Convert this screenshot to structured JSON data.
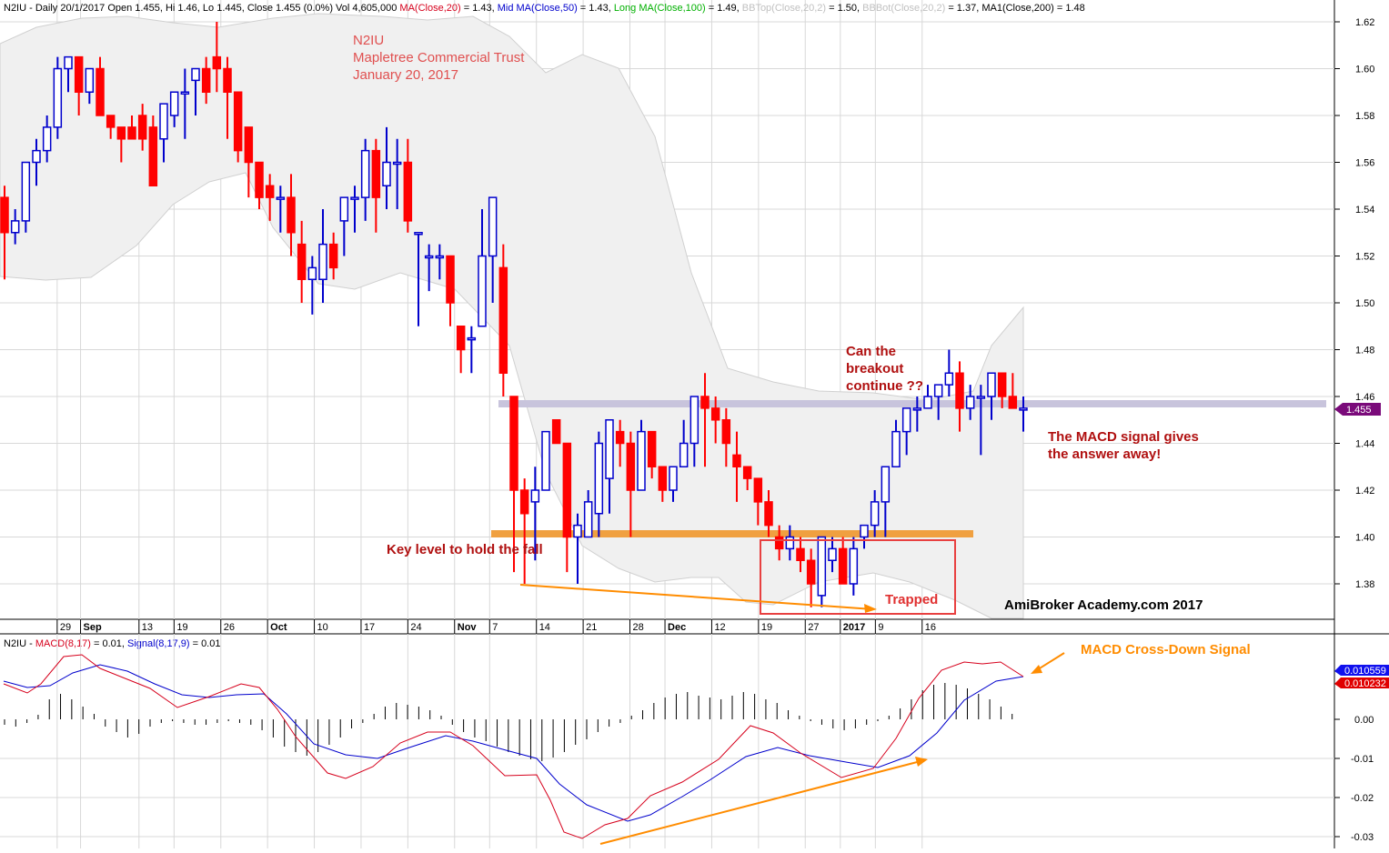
{
  "header": {
    "segments": [
      {
        "text": "N2IU - Daily 20/1/2017 Open 1.455, Hi 1.46, Lo 1.445, Close 1.455 (0.0%) Vol 4,605,000 ",
        "color": "#000000"
      },
      {
        "text": "MA(Close,20)",
        "color": "#d6001c"
      },
      {
        "text": " = 1.43, ",
        "color": "#000000"
      },
      {
        "text": "Mid MA(Close,50)",
        "color": "#0000cc"
      },
      {
        "text": " = 1.43, ",
        "color": "#000000"
      },
      {
        "text": "Long MA(Close,100)",
        "color": "#00b000"
      },
      {
        "text": " = 1.49, ",
        "color": "#000000"
      },
      {
        "text": "BBTop(Close,20,2)",
        "color": "#c0c0c0"
      },
      {
        "text": " = 1.50, ",
        "color": "#000000"
      },
      {
        "text": "BBBot(Close,20,2)",
        "color": "#c0c0c0"
      },
      {
        "text": " = 1.37, MA1(Close,200) = 1.48",
        "color": "#000000"
      }
    ]
  },
  "macd_header": {
    "segments": [
      {
        "text": "N2IU - ",
        "color": "#000000"
      },
      {
        "text": "MACD(8,17)",
        "color": "#d6001c"
      },
      {
        "text": " = 0.01, ",
        "color": "#000000"
      },
      {
        "text": "Signal(8,17,9)",
        "color": "#0000cc"
      },
      {
        "text": " = 0.01",
        "color": "#000000"
      }
    ]
  },
  "colors": {
    "up_candle": "#0000cc",
    "down_candle": "#ff0000",
    "band_fill": "#f0f0f0",
    "grid": "#d8d8d8",
    "macd_line": "#d6001c",
    "signal_line": "#0000cc",
    "resistance": "#c8c4dc",
    "support": "#f0a040",
    "annotation_red": "#c00000",
    "annotation_orange": "#ff8c00",
    "trapped_box": "#e84040",
    "price_marker": "#7a0a7a",
    "macd_marker": "#1010ee",
    "signal_marker": "#e00000"
  },
  "annotations": {
    "title_line1": "N2IU",
    "title_line2": "Mapletree Commercial Trust",
    "title_line3": "January 20, 2017",
    "can_line1": "Can the",
    "can_line2": "breakout",
    "can_line3": "continue ??",
    "macd_note_line1": "The MACD signal gives",
    "macd_note_line2": "the answer away!",
    "key_level": "Key level to hold the fall",
    "trapped": "Trapped",
    "watermark": "AmiBroker Academy.com  2017",
    "macd_cross": "MACD Cross-Down Signal"
  },
  "markers": {
    "last_price": "1.455",
    "macd_value": "0.010559",
    "signal_value": "0.010232"
  },
  "chart_data": [
    {
      "type": "candlestick",
      "title": "N2IU - Daily 20/1/2017",
      "y_axis": {
        "min": 1.365,
        "max": 1.625,
        "ticks": [
          "1.38",
          "1.40",
          "1.42",
          "1.44",
          "1.46",
          "1.48",
          "1.50",
          "1.52",
          "1.54",
          "1.56",
          "1.58",
          "1.60",
          "1.62"
        ]
      },
      "x_ticks": [
        {
          "i": 1,
          "label": "29"
        },
        {
          "i": 3,
          "label": "Sep"
        },
        {
          "i": 8,
          "label": "13"
        },
        {
          "i": 11,
          "label": "19"
        },
        {
          "i": 15,
          "label": "26"
        },
        {
          "i": 19,
          "label": "Oct"
        },
        {
          "i": 23,
          "label": "10"
        },
        {
          "i": 27,
          "label": "17"
        },
        {
          "i": 31,
          "label": "24"
        },
        {
          "i": 35,
          "label": "Nov"
        },
        {
          "i": 38,
          "label": "7"
        },
        {
          "i": 42,
          "label": "14"
        },
        {
          "i": 46,
          "label": "21"
        },
        {
          "i": 50,
          "label": "28"
        },
        {
          "i": 53,
          "label": "Dec"
        },
        {
          "i": 57,
          "label": "12"
        },
        {
          "i": 61,
          "label": "19"
        },
        {
          "i": 65,
          "label": "27"
        },
        {
          "i": 68,
          "label": "2017"
        },
        {
          "i": 71,
          "label": "9"
        },
        {
          "i": 75,
          "label": "16"
        }
      ],
      "candles": [
        [
          1.545,
          1.55,
          1.53,
          1.53
        ],
        [
          1.54,
          1.54,
          1.51,
          1.53
        ],
        [
          1.53,
          1.545,
          1.525,
          1.535
        ],
        [
          1.535,
          1.56,
          1.535,
          1.56
        ],
        [
          1.56,
          1.575,
          1.55,
          1.565
        ],
        [
          1.565,
          1.58,
          1.56,
          1.575
        ],
        [
          1.575,
          1.6,
          1.57,
          1.6
        ],
        [
          1.6,
          1.605,
          1.59,
          1.605
        ],
        [
          1.605,
          1.605,
          1.585,
          1.595
        ],
        [
          1.595,
          1.6,
          1.585,
          1.585
        ],
        [
          1.59,
          1.605,
          1.58,
          1.6
        ],
        [
          1.6,
          1.605,
          1.58,
          1.58
        ],
        [
          1.58,
          1.58,
          1.575,
          1.575
        ],
        [
          1.575,
          1.575,
          1.56,
          1.57
        ],
        [
          1.57,
          1.575,
          1.56,
          1.57
        ],
        [
          1.585,
          1.595,
          1.56,
          1.565
        ],
        [
          1.57,
          1.585,
          1.55,
          1.56
        ],
        [
          1.57,
          1.57,
          1.545,
          1.55
        ],
        [
          1.555,
          1.59,
          1.55,
          1.585
        ],
        [
          1.58,
          1.59,
          1.57,
          1.59
        ],
        [
          1.585,
          1.6,
          1.565,
          1.59
        ],
        [
          1.595,
          1.6,
          1.57,
          1.6
        ],
        [
          1.6,
          1.6,
          1.58,
          1.58
        ],
        [
          1.58,
          1.605,
          1.57,
          1.605
        ],
        [
          1.6,
          1.62,
          1.595,
          1.605
        ],
        [
          1.605,
          1.605,
          1.575,
          1.575
        ],
        [
          1.59,
          1.59,
          1.56,
          1.565
        ],
        [
          1.575,
          1.575,
          1.56,
          1.56
        ],
        [
          1.565,
          1.565,
          1.535,
          1.545
        ],
        [
          1.545,
          1.55,
          1.535,
          1.545
        ],
        [
          1.545,
          1.555,
          1.52,
          1.53
        ],
        [
          1.525,
          1.535,
          1.505,
          1.51
        ],
        [
          1.51,
          1.52,
          1.495,
          1.515
        ],
        [
          1.51,
          1.54,
          1.5,
          1.525
        ],
        [
          1.525,
          1.53,
          1.51,
          1.515
        ],
        [
          1.53,
          1.54,
          1.52,
          1.535
        ],
        [
          1.535,
          1.545,
          1.525,
          1.54
        ],
        [
          1.55,
          1.57,
          1.53,
          1.565
        ],
        [
          1.575,
          1.575,
          1.52,
          1.545
        ],
        [
          1.55,
          1.555,
          1.525,
          1.535
        ],
        [
          1.545,
          1.57,
          1.535,
          1.56
        ],
        [
          1.555,
          1.57,
          1.54,
          1.55
        ],
        [
          1.545,
          1.545,
          1.525,
          1.53
        ],
        [
          1.53,
          1.53,
          1.5,
          1.52
        ],
        [
          1.52,
          1.525,
          1.505,
          1.51
        ],
        [
          1.51,
          1.51,
          1.5,
          1.5
        ],
        [
          1.5,
          1.5,
          1.49,
          1.49
        ],
        [
          1.49,
          1.51,
          1.475,
          1.505
        ],
        [
          1.505,
          1.51,
          1.49,
          1.495
        ],
        [
          1.5,
          1.5,
          1.48,
          1.48
        ],
        [
          1.48,
          1.48,
          1.47,
          1.47
        ],
        [
          1.47,
          1.485,
          1.465,
          1.48
        ],
        [
          1.48,
          1.5,
          1.475,
          1.495
        ],
        [
          1.5,
          1.51,
          1.49,
          1.505
        ],
        [
          1.505,
          1.51,
          1.49,
          1.49
        ],
        [
          1.495,
          1.5,
          1.47,
          1.475
        ],
        [
          1.475,
          1.48,
          1.44,
          1.445
        ],
        [
          1.44,
          1.44,
          1.42,
          1.425
        ]
      ]
    }
  ]
}
